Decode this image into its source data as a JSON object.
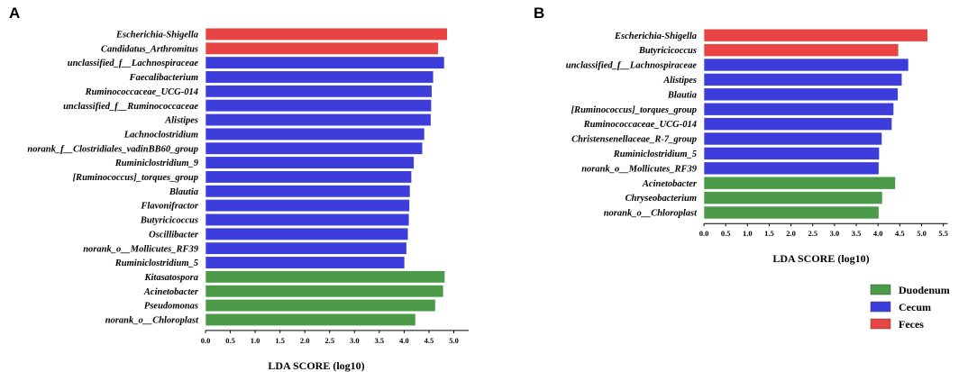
{
  "chart_data": [
    {
      "panel": "A",
      "type": "bar",
      "orientation": "horizontal",
      "xlabel": "LDA SCORE (log10)",
      "xlim": [
        0,
        5.3
      ],
      "ticks": [
        "0.0",
        "0.5",
        "1.0",
        "1.5",
        "2.0",
        "2.5",
        "3.0",
        "3.5",
        "4.0",
        "4.5",
        "5.0"
      ],
      "categories": [
        "Escherichia-Shigella",
        "Candidatus_Arthromitus",
        "unclassified_f__Lachnospiraceae",
        "Faecalibacterium",
        "Ruminococcaceae_UCG-014",
        "unclassified_f__Ruminococcaceae",
        "Alistipes",
        "Lachnoclostridium",
        "norank_f__Clostridiales_vadinBB60_group",
        "Ruminiclostridium_9",
        "[Ruminococcus]_torques_group",
        "Blautia",
        "Flavonifractor",
        "Butyricicoccus",
        "Oscillibacter",
        "norank_o__Mollicutes_RF39",
        "Ruminiclostridium_5",
        "Kitasatospora",
        "Acinetobacter",
        "Pseudomonas",
        "norank_o__Chloroplast"
      ],
      "values": [
        4.87,
        4.69,
        4.81,
        4.59,
        4.56,
        4.55,
        4.54,
        4.41,
        4.37,
        4.2,
        4.15,
        4.12,
        4.11,
        4.1,
        4.08,
        4.05,
        4.01,
        4.82,
        4.79,
        4.63,
        4.23
      ],
      "groups": [
        "Feces",
        "Feces",
        "Cecum",
        "Cecum",
        "Cecum",
        "Cecum",
        "Cecum",
        "Cecum",
        "Cecum",
        "Cecum",
        "Cecum",
        "Cecum",
        "Cecum",
        "Cecum",
        "Cecum",
        "Cecum",
        "Cecum",
        "Duodenum",
        "Duodenum",
        "Duodenum",
        "Duodenum"
      ]
    },
    {
      "panel": "B",
      "type": "bar",
      "orientation": "horizontal",
      "xlabel": "LDA SCORE (log10)",
      "xlim": [
        0,
        5.6
      ],
      "ticks": [
        "0.0",
        "0.5",
        "1.0",
        "1.5",
        "2.0",
        "2.5",
        "3.0",
        "3.5",
        "4.0",
        "4.5",
        "5.0",
        "5.5"
      ],
      "categories": [
        "Escherichia-Shigella",
        "Butyricicoccus",
        "unclassified_f__Lachnospiraceae",
        "Alistipes",
        "Blautia",
        "[Ruminococcus]_torques_group",
        "Ruminococcaceae_UCG-014",
        "Christensenellaceae_R-7_group",
        "Ruminiclostridium_5",
        "norank_o__Mollicutes_RF39",
        "Acinetobacter",
        "Chryseobacterium",
        "norank_o__Chloroplast"
      ],
      "values": [
        5.14,
        4.47,
        4.7,
        4.55,
        4.46,
        4.36,
        4.32,
        4.09,
        4.03,
        4.02,
        4.4,
        4.1,
        4.02
      ],
      "groups": [
        "Feces",
        "Feces",
        "Cecum",
        "Cecum",
        "Cecum",
        "Cecum",
        "Cecum",
        "Cecum",
        "Cecum",
        "Cecum",
        "Duodenum",
        "Duodenum",
        "Duodenum"
      ]
    }
  ],
  "legend": [
    {
      "label": "Duodenum",
      "color": "#4a9a48"
    },
    {
      "label": "Cecum",
      "color": "#3d3ddb"
    },
    {
      "label": "Feces",
      "color": "#e84444"
    }
  ],
  "group_colors": {
    "Duodenum": "#4a9a48",
    "Cecum": "#3d3ddb",
    "Feces": "#e84444"
  }
}
